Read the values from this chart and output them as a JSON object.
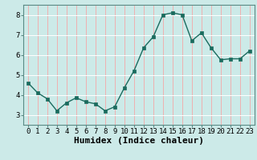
{
  "x": [
    0,
    1,
    2,
    3,
    4,
    5,
    6,
    7,
    8,
    9,
    10,
    11,
    12,
    13,
    14,
    15,
    16,
    17,
    18,
    19,
    20,
    21,
    22,
    23
  ],
  "y": [
    4.6,
    4.1,
    3.8,
    3.2,
    3.6,
    3.85,
    3.65,
    3.55,
    3.2,
    3.4,
    4.35,
    5.2,
    6.35,
    6.9,
    8.0,
    8.1,
    8.0,
    6.7,
    7.1,
    6.35,
    5.75,
    5.8,
    5.8,
    6.2
  ],
  "xlabel": "Humidex (Indice chaleur)",
  "ylim": [
    2.5,
    8.5
  ],
  "xlim": [
    -0.5,
    23.5
  ],
  "yticks": [
    3,
    4,
    5,
    6,
    7,
    8
  ],
  "xticks": [
    0,
    1,
    2,
    3,
    4,
    5,
    6,
    7,
    8,
    9,
    10,
    11,
    12,
    13,
    14,
    15,
    16,
    17,
    18,
    19,
    20,
    21,
    22,
    23
  ],
  "line_color": "#1a6b5e",
  "bg_color": "#cceae8",
  "grid_color": "#ffffff",
  "spine_color": "#5a8a85",
  "tick_label_fontsize": 6.5,
  "xlabel_fontsize": 8,
  "marker_size": 2.5,
  "line_width": 1.0
}
